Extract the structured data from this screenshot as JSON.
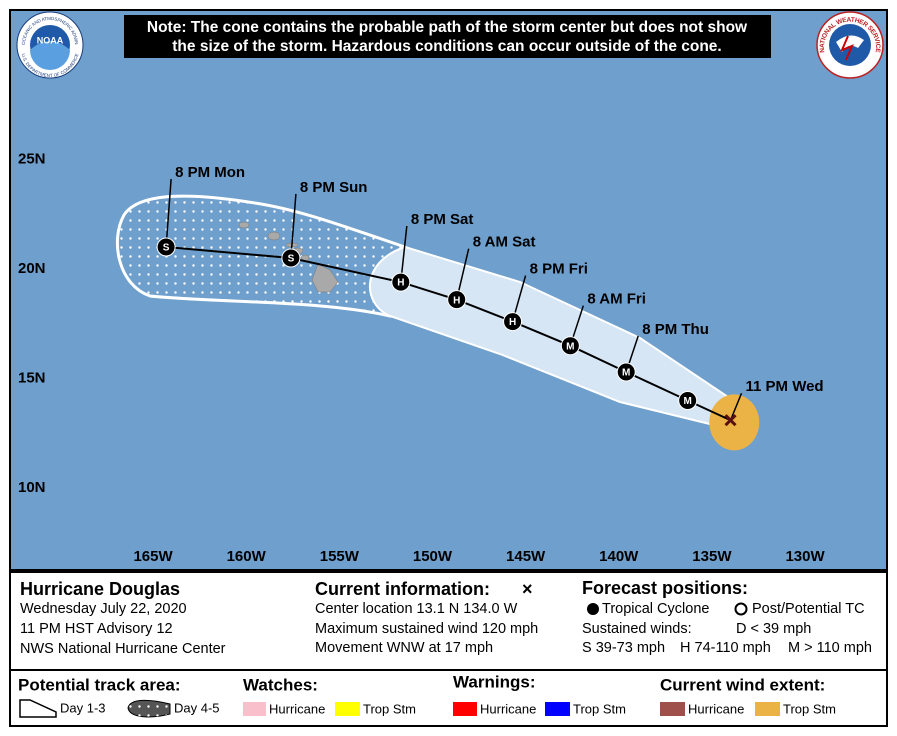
{
  "header": {
    "note": [
      "Note: The cone contains the probable path of the storm center but does not show",
      "the size of the storm. Hazardous conditions can occur outside of the cone."
    ],
    "noaa_logo": {
      "center": "NOAA",
      "top": "NATIONAL OCEANIC AND ATMOSPHERIC ADMINISTRATION",
      "bottom": "U.S. DEPARTMENT OF COMMERCE"
    },
    "nws_logo": {
      "ring": "NATIONAL WEATHER SERVICE"
    }
  },
  "map": {
    "xlim": [
      -172.68,
      -125.6
    ],
    "ylim": [
      6.27,
      31.81
    ],
    "xticks": [
      {
        "value": -165,
        "label": "165W"
      },
      {
        "value": -160,
        "label": "160W"
      },
      {
        "value": -155,
        "label": "155W"
      },
      {
        "value": -150,
        "label": "150W"
      },
      {
        "value": -145,
        "label": "145W"
      },
      {
        "value": -140,
        "label": "140W"
      },
      {
        "value": -135,
        "label": "135W"
      },
      {
        "value": -130,
        "label": "130W"
      }
    ],
    "yticks": [
      {
        "value": 25,
        "label": "25N"
      },
      {
        "value": 20,
        "label": "20N"
      },
      {
        "value": 15,
        "label": "15N"
      },
      {
        "value": 10,
        "label": "10N"
      }
    ],
    "track": [
      {
        "label": "11 PM Wed",
        "symbol": null,
        "lon": -134.0,
        "lat": 13.1
      },
      {
        "label": null,
        "symbol": "M",
        "lon": -136.3,
        "lat": 14.0
      },
      {
        "label": "8 PM Thu",
        "symbol": "M",
        "lon": -139.6,
        "lat": 15.3
      },
      {
        "label": "8 AM Fri",
        "symbol": "M",
        "lon": -142.6,
        "lat": 16.5
      },
      {
        "label": "8 PM Fri",
        "symbol": "H",
        "lon": -145.7,
        "lat": 17.6
      },
      {
        "label": "8 AM Sat",
        "symbol": "H",
        "lon": -148.7,
        "lat": 18.6
      },
      {
        "label": "8 PM Sat",
        "symbol": "H",
        "lon": -151.7,
        "lat": 19.4
      },
      {
        "label": "8 PM Sun",
        "symbol": "S",
        "lon": -157.6,
        "lat": 20.5
      },
      {
        "label": "8 PM Mon",
        "symbol": "S",
        "lon": -164.3,
        "lat": 21.0
      }
    ],
    "wind_extent": {
      "lon": -133.8,
      "lat": 13.0
    }
  },
  "panel": {
    "storm": [
      "Hurricane Douglas",
      "Wednesday July 22, 2020",
      "11 PM HST Advisory 12",
      "NWS National Hurricane Center"
    ],
    "current": {
      "title": "Current information:",
      "symbol": "×",
      "lines": [
        "Center location 13.1 N 134.0 W",
        "Maximum sustained wind 120 mph",
        "Movement WNW at 17 mph"
      ]
    },
    "forecast": {
      "title": "Forecast positions:",
      "tropical": "Tropical Cyclone",
      "post": "Post/Potential TC",
      "winds": "Sustained winds:",
      "d": "D < 39 mph",
      "s": "S 39-73 mph",
      "h": "H 74-110 mph",
      "m": "M > 110 mph"
    },
    "track_area": {
      "title": "Potential track area:",
      "day13": "Day 1-3",
      "day45": "Day 4-5"
    },
    "watches": {
      "title": "Watches:",
      "hurricane": "Hurricane",
      "trop": "Trop Stm"
    },
    "warnings": {
      "title": "Warnings:",
      "hurricane": "Hurricane",
      "trop": "Trop Stm"
    },
    "wind": {
      "title": "Current wind extent:",
      "hurricane": "Hurricane",
      "trop": "Trop Stm"
    }
  }
}
